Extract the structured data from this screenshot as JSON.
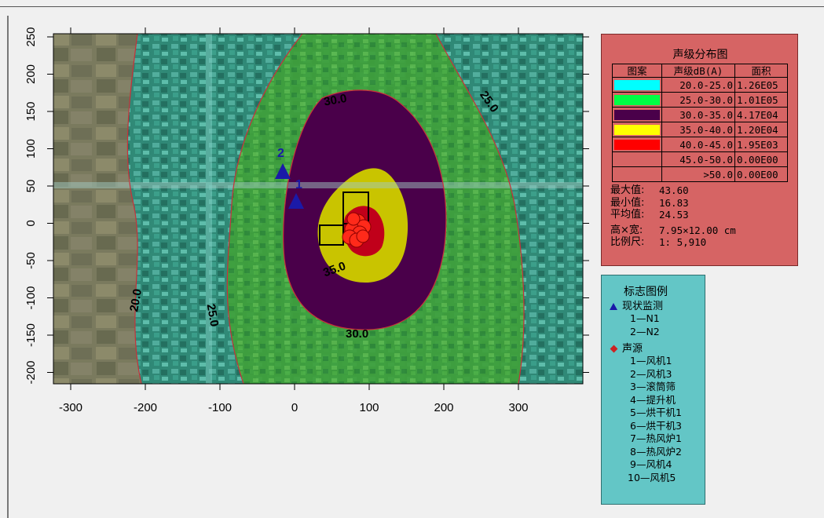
{
  "map": {
    "x_ticks": [
      "-300",
      "-200",
      "-100",
      "0",
      "100",
      "200",
      "300"
    ],
    "y_ticks": [
      "250",
      "200",
      "150",
      "100",
      "50",
      "0",
      "-50",
      "-100",
      "-150",
      "-200"
    ],
    "contour_labels": {
      "c20": "20.0",
      "c25_left": "25.0",
      "c25_right": "25.0",
      "c30_top": "30.0",
      "c30_bottom": "30.0",
      "c35": "35.0"
    },
    "monitor_labels": [
      "2",
      "1"
    ],
    "colors": {
      "c20_25": "#00ffff",
      "c25_30": "#00ff66",
      "c30_35": "#4a004a",
      "c35_40": "#ffff00",
      "c40_45": "#ff0000",
      "contour_line": "#cc2a2a",
      "monitor": "#1a1aa8",
      "source": "#ff2a1a"
    }
  },
  "legend": {
    "title": "声级分布图",
    "headers": [
      "图案",
      "声级dB(A)",
      "面积"
    ],
    "rows": [
      {
        "color": "#00ffff",
        "range": "20.0-25.0",
        "area": "1.26E05"
      },
      {
        "color": "#00ff44",
        "range": "25.0-30.0",
        "area": "1.01E05"
      },
      {
        "color": "#4a004a",
        "range": "30.0-35.0",
        "area": "4.17E04"
      },
      {
        "color": "#ffff00",
        "range": "35.0-40.0",
        "area": "1.20E04"
      },
      {
        "color": "#ff0000",
        "range": "40.0-45.0",
        "area": "1.95E03"
      },
      {
        "color": "",
        "range": "45.0-50.0",
        "area": "0.00E00"
      },
      {
        "color": "",
        "range": ">50.0",
        "area": "0.00E00"
      }
    ],
    "stats": {
      "max_label": "最大值:",
      "max_value": "43.60",
      "min_label": "最小值:",
      "min_value": "16.83",
      "avg_label": "平均值:",
      "avg_value": "24.53",
      "size_label": "高×宽:",
      "size_value": "7.95×12.00 cm",
      "scale_label": "比例尺:",
      "scale_value": "1: 5,910"
    }
  },
  "markers": {
    "title": "标志图例",
    "monitor_title": "现状监测",
    "monitors": [
      "1—N1",
      "2—N2"
    ],
    "source_title": "声源",
    "sources": [
      "1—风机1",
      "2—风机3",
      "3—滚筒筛",
      "4—提升机",
      "5—烘干机1",
      "6—烘干机3",
      "7—热风炉1",
      "8—热风炉2",
      "9—风机4",
      "10—风机5"
    ]
  }
}
